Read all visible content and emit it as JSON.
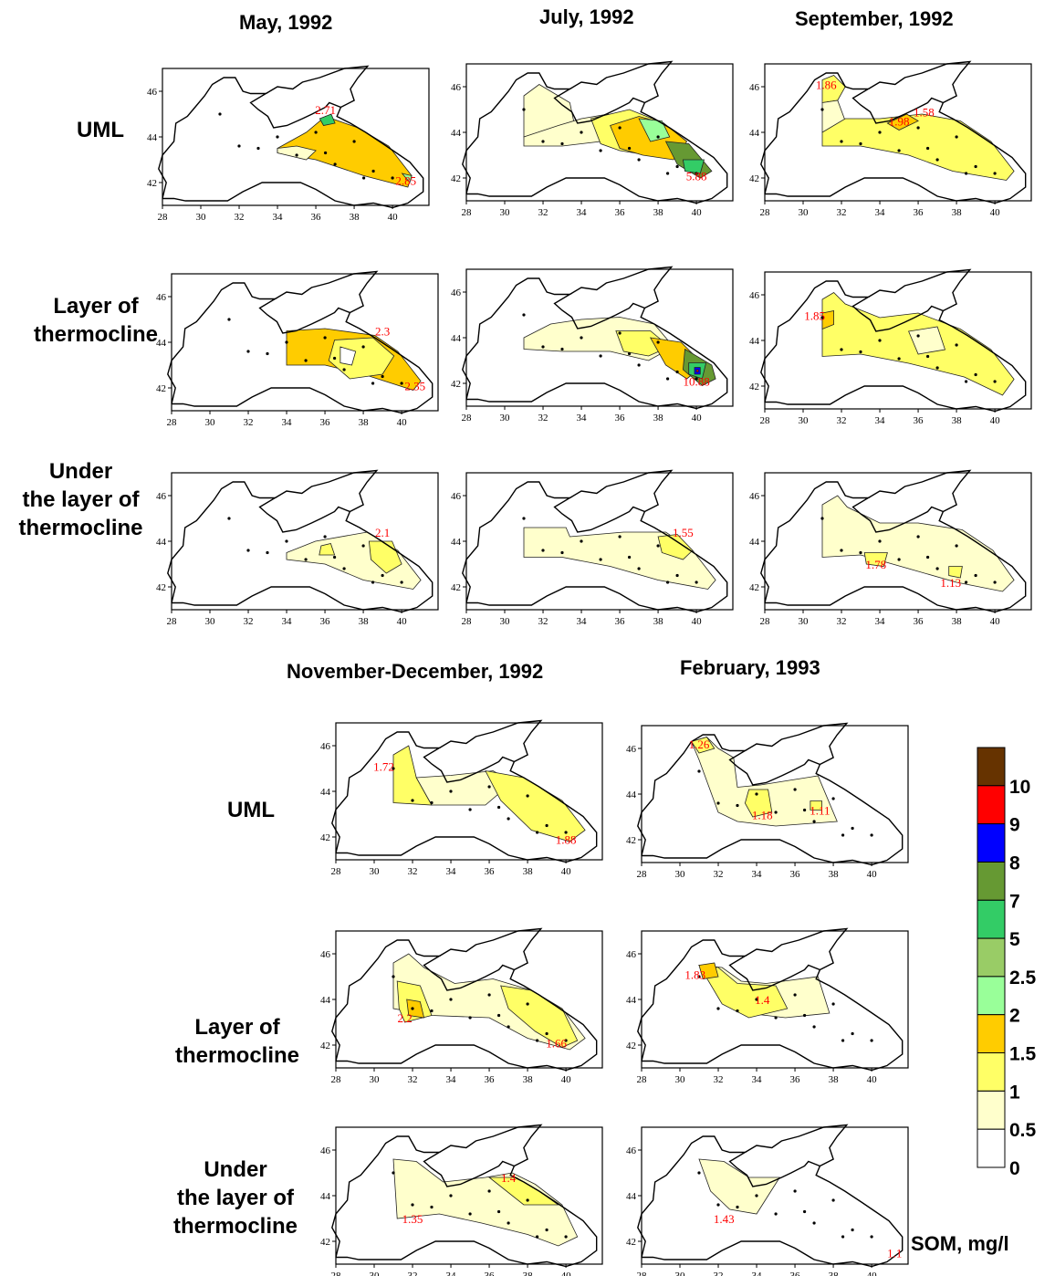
{
  "columns_top": [
    "May, 1992",
    "July, 1992",
    "September, 1992"
  ],
  "columns_bottom": [
    "November-December, 1992",
    "February, 1993"
  ],
  "row_labels_top": [
    [
      "UML"
    ],
    [
      "Layer of",
      "thermocline"
    ],
    [
      "Under",
      "the layer of",
      "thermocline"
    ]
  ],
  "row_labels_bottom": [
    [
      "UML"
    ],
    [
      "Layer of",
      "thermocline"
    ],
    [
      "Under",
      "the layer of",
      "thermocline"
    ]
  ],
  "lon_ticks_full": [
    "28",
    "30",
    "32",
    "34",
    "36",
    "38",
    "40"
  ],
  "lat_ticks": [
    "42",
    "44",
    "46"
  ],
  "legend": {
    "title": "SOM, mg/l",
    "levels": [
      "10",
      "9",
      "8",
      "7",
      "5",
      "2.5",
      "2",
      "1.5",
      "1",
      "0.5",
      "0"
    ],
    "colors": [
      "#663300",
      "#ff0000",
      "#0000ff",
      "#669933",
      "#33cc66",
      "#99cc66",
      "#99ff99",
      "#ffcc00",
      "#ffff66",
      "#ffffcc",
      "#ffffff"
    ]
  },
  "panels": [
    {
      "id": "may-uml",
      "values": [
        {
          "t": "2.71",
          "lon": 36.5,
          "lat": 45.0
        },
        {
          "t": "2.85",
          "lon": 40.7,
          "lat": 41.9
        }
      ]
    },
    {
      "id": "may-thermo",
      "values": [
        {
          "t": "2.3",
          "lon": 39.0,
          "lat": 44.3
        },
        {
          "t": "2.35",
          "lon": 40.7,
          "lat": 41.9
        }
      ]
    },
    {
      "id": "may-under",
      "values": [
        {
          "t": "2.1",
          "lon": 39.0,
          "lat": 44.2
        }
      ]
    },
    {
      "id": "jul-uml",
      "values": [
        {
          "t": "5.88",
          "lon": 40.0,
          "lat": 41.9
        }
      ]
    },
    {
      "id": "jul-thermo",
      "values": [
        {
          "t": "10.88",
          "lon": 40.0,
          "lat": 41.9
        }
      ]
    },
    {
      "id": "jul-under",
      "values": [
        {
          "t": "1.55",
          "lon": 39.3,
          "lat": 44.2
        }
      ]
    },
    {
      "id": "sep-uml",
      "values": [
        {
          "t": "1.86",
          "lon": 31.2,
          "lat": 45.9
        },
        {
          "t": "1.98",
          "lon": 35.0,
          "lat": 44.3
        },
        {
          "t": "1.58",
          "lon": 36.3,
          "lat": 44.7
        }
      ]
    },
    {
      "id": "sep-thermo",
      "values": [
        {
          "t": "1.85",
          "lon": 30.6,
          "lat": 44.9
        }
      ]
    },
    {
      "id": "sep-under",
      "values": [
        {
          "t": "1.78",
          "lon": 33.8,
          "lat": 42.8
        },
        {
          "t": "1.13",
          "lon": 37.7,
          "lat": 42.0
        }
      ]
    },
    {
      "id": "nov-uml",
      "values": [
        {
          "t": "1.72",
          "lon": 30.5,
          "lat": 44.9
        },
        {
          "t": "1.88",
          "lon": 40.0,
          "lat": 41.7
        }
      ]
    },
    {
      "id": "nov-thermo",
      "values": [
        {
          "t": "2.2",
          "lon": 31.6,
          "lat": 43.0
        },
        {
          "t": "1.66",
          "lon": 39.5,
          "lat": 41.9
        }
      ]
    },
    {
      "id": "nov-under",
      "values": [
        {
          "t": "1.4",
          "lon": 37.0,
          "lat": 44.6
        },
        {
          "t": "1.35",
          "lon": 32.0,
          "lat": 42.8
        }
      ]
    },
    {
      "id": "feb-uml",
      "values": [
        {
          "t": "1.26",
          "lon": 31.0,
          "lat": 46.0
        },
        {
          "t": "1.18",
          "lon": 34.3,
          "lat": 42.9
        },
        {
          "t": "1.11",
          "lon": 37.3,
          "lat": 43.1
        }
      ]
    },
    {
      "id": "feb-thermo",
      "values": [
        {
          "t": "1.83",
          "lon": 30.8,
          "lat": 44.9
        },
        {
          "t": "1.4",
          "lon": 34.3,
          "lat": 43.8
        }
      ]
    },
    {
      "id": "feb-under",
      "values": [
        {
          "t": "1.43",
          "lon": 32.3,
          "lat": 42.8
        },
        {
          "t": "1.1",
          "lon": 41.2,
          "lat": 41.3
        }
      ]
    }
  ]
}
